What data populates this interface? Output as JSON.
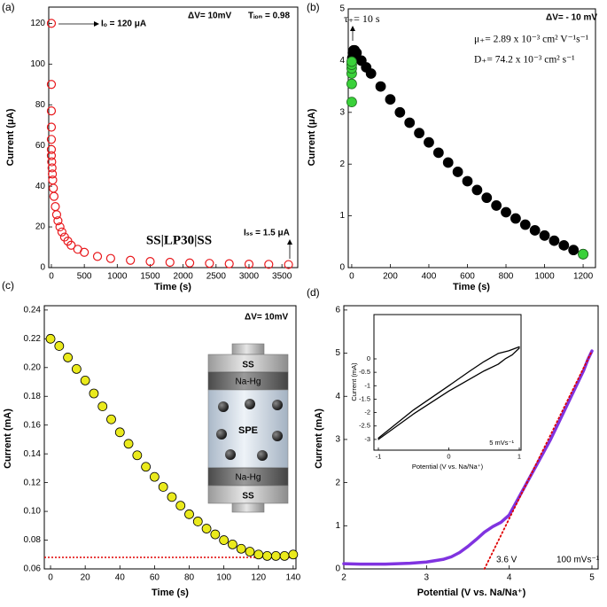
{
  "chart_data": [
    {
      "type": "scatter",
      "panel_label": "(a)",
      "x_label": "Time (s)",
      "y_label": "Current (μA)",
      "xlim": [
        -40,
        3740
      ],
      "ylim": [
        0,
        128
      ],
      "xticks": [
        0,
        500,
        1000,
        1500,
        2000,
        2500,
        3000,
        3500
      ],
      "yticks": [
        0,
        20,
        40,
        60,
        80,
        100,
        120
      ],
      "annotations": {
        "initial_current": "Iₒ = 120 μA",
        "voltage": "ΔV= 10mV",
        "transference": "Tᵢₒₙ = 0.98",
        "cell": "SS|LP30|SS",
        "steady_current": "Iₛₛ = 1.5 μA"
      },
      "series": [
        {
          "color": "#e8181c",
          "marker": "open",
          "x": [
            0,
            0,
            0,
            0,
            0,
            0,
            0,
            5,
            10,
            15,
            20,
            30,
            40,
            60,
            80,
            100,
            130,
            160,
            200,
            250,
            300,
            400,
            500,
            700,
            900,
            1200,
            1500,
            1800,
            2100,
            2400,
            2700,
            3000,
            3300,
            3600
          ],
          "values": [
            120,
            90,
            77,
            69,
            63,
            58,
            55,
            52,
            49,
            46,
            43,
            39,
            35,
            30,
            26,
            23,
            20,
            17.5,
            15,
            13,
            11,
            9,
            7.5,
            5.5,
            4.5,
            3.6,
            3,
            2.6,
            2.3,
            2.1,
            1.9,
            1.7,
            1.6,
            1.5
          ]
        }
      ]
    },
    {
      "type": "scatter",
      "panel_label": "(b)",
      "x_label": "Time (s)",
      "y_label": "Current (μA)",
      "xlim": [
        -18,
        1264
      ],
      "ylim": [
        0,
        5
      ],
      "xticks": [
        0,
        200,
        400,
        600,
        800,
        1000,
        1200
      ],
      "yticks": [
        0,
        1,
        2,
        3,
        4,
        5
      ],
      "annotations": {
        "tau": "τ₊= 10 s",
        "voltage": "ΔV= - 10 mV",
        "mobility": "μ₊= 2.89  x 10⁻³ cm² V⁻¹s⁻¹",
        "diffusion": "D₊= 74.2 x 10⁻³ cm² s⁻¹"
      },
      "series": [
        {
          "color": "#000000",
          "marker": "filled",
          "edgecolor": "#000000",
          "x": [
            3,
            6,
            10,
            15,
            25,
            50,
            75,
            100,
            150,
            200,
            250,
            300,
            350,
            400,
            450,
            500,
            550,
            600,
            650,
            700,
            750,
            800,
            850,
            900,
            950,
            1000,
            1050,
            1100,
            1150,
            1200
          ],
          "values": [
            4.05,
            4.15,
            4.2,
            4.2,
            4.15,
            4.0,
            3.87,
            3.75,
            3.5,
            3.25,
            3.0,
            2.8,
            2.6,
            2.42,
            2.22,
            2.03,
            1.85,
            1.67,
            1.5,
            1.35,
            1.2,
            1.07,
            0.95,
            0.83,
            0.72,
            0.62,
            0.52,
            0.43,
            0.34,
            0.26
          ]
        },
        {
          "color": "#3ad13a",
          "marker": "filled",
          "edgecolor": "#1f6b1f",
          "x": [
            0,
            0,
            0,
            0,
            0,
            0,
            1200
          ],
          "values": [
            3.2,
            3.55,
            3.75,
            3.85,
            3.92,
            3.98,
            0.26
          ]
        }
      ]
    },
    {
      "type": "scatter",
      "panel_label": "(c)",
      "x_label": "Time (s)",
      "y_label": "Current (mA)",
      "xlim": [
        -3.6,
        141.6
      ],
      "ylim": [
        0.06,
        0.243
      ],
      "xticks": [
        0,
        20,
        40,
        60,
        80,
        100,
        120,
        140
      ],
      "yticks": [
        0.06,
        0.08,
        {
          "value": 0.1,
          "label": "0.10"
        },
        0.12,
        0.14,
        0.16,
        0.18,
        {
          "value": 0.2,
          "label": "0.20"
        },
        0.22,
        0.24
      ],
      "annotations": {
        "voltage": "ΔV= 10mV"
      },
      "cell_labels": {
        "top": "SS",
        "top_electrode": "Na-Hg",
        "electrolyte": "SPE",
        "bottom_electrode": "Na-Hg",
        "bottom": "SS"
      },
      "reference_line": {
        "value": 0.068,
        "color": "#e00000"
      },
      "series": [
        {
          "color": "#eaea1c",
          "marker": "filled",
          "edgecolor": "#000000",
          "x": [
            0,
            5,
            10,
            15,
            20,
            25,
            30,
            35,
            40,
            45,
            50,
            55,
            60,
            65,
            70,
            75,
            80,
            85,
            90,
            95,
            100,
            105,
            110,
            115,
            120,
            125,
            130,
            135,
            140
          ],
          "values": [
            0.22,
            0.215,
            0.207,
            0.199,
            0.191,
            0.182,
            0.173,
            0.164,
            0.155,
            0.147,
            0.139,
            0.131,
            0.124,
            0.117,
            0.11,
            0.104,
            0.098,
            0.093,
            0.088,
            0.084,
            0.08,
            0.077,
            0.074,
            0.072,
            0.07,
            0.069,
            0.069,
            0.069,
            0.07
          ]
        }
      ]
    },
    {
      "type": "line",
      "panel_label": "(d)",
      "x_label": "Potential (V vs. Na/Na⁺)",
      "y_label": "Current (mA)",
      "xlim": [
        2,
        5.075
      ],
      "ylim": [
        0,
        6.1
      ],
      "xticks": [
        2,
        3,
        4,
        5
      ],
      "yticks": [
        0,
        1,
        2,
        3,
        4,
        5,
        6
      ],
      "annotations": {
        "onset": "3.6 V",
        "scan_rate": "100 mVs⁻¹"
      },
      "series": [
        {
          "color": "#8033e0",
          "width": 3.5,
          "x": [
            2,
            2.2,
            2.5,
            2.8,
            3,
            3.2,
            3.3,
            3.4,
            3.5,
            3.6,
            3.7,
            3.8,
            3.9,
            4,
            4.1,
            4.2,
            4.3,
            4.4,
            4.5,
            4.6,
            4.7,
            4.8,
            4.9,
            4.95,
            5
          ],
          "values": [
            0.12,
            0.11,
            0.11,
            0.13,
            0.16,
            0.22,
            0.28,
            0.38,
            0.52,
            0.68,
            0.85,
            0.98,
            1.08,
            1.25,
            1.6,
            1.95,
            2.3,
            2.65,
            3.0,
            3.4,
            3.8,
            4.2,
            4.6,
            4.85,
            5.05
          ]
        },
        {
          "color": "#e00000",
          "width": 1.8,
          "dashed": true,
          "x": [
            3.7,
            5
          ],
          "values": [
            0,
            5.05
          ]
        }
      ]
    },
    {
      "type": "line",
      "x_label": "Potential (V vs. Na/Na⁺)",
      "y_label": "Current (mA)",
      "xlim": [
        -1.063,
        1.025
      ],
      "ylim": [
        -3.4,
        1.65
      ],
      "xticks": [
        -1,
        0,
        1
      ],
      "yticks": [
        0,
        -0.5,
        -1,
        -1.5,
        -2,
        -2.5,
        -3
      ],
      "annotations": {
        "scan_rate": "5 mVs⁻¹"
      },
      "series": [
        {
          "color": "#000000",
          "width": 1.3,
          "x": [
            -1,
            -0.5,
            0,
            0.3,
            0.5,
            0.7,
            0.85,
            1
          ],
          "values": [
            -2.95,
            -1.9,
            -1.0,
            -0.45,
            -0.1,
            0.2,
            0.3,
            0.45
          ]
        },
        {
          "color": "#000000",
          "width": 1.3,
          "x": [
            -1,
            -0.5,
            0,
            0.3,
            0.5,
            0.7,
            0.8,
            0.9,
            1
          ],
          "values": [
            -3.0,
            -2.05,
            -1.2,
            -0.75,
            -0.45,
            -0.2,
            0.0,
            0.15,
            0.4
          ]
        }
      ]
    }
  ]
}
